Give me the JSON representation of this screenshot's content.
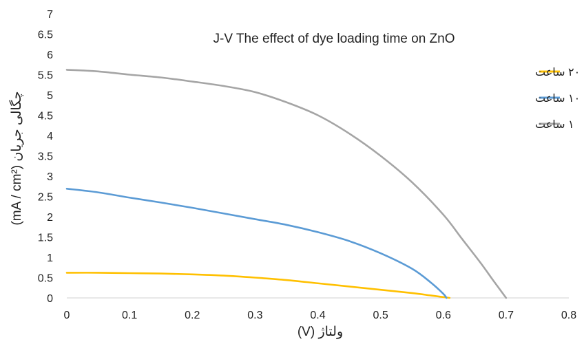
{
  "chart_data": {
    "type": "line",
    "title": "J-V The effect of dye loading time on ZnO",
    "xlabel": "ولتاژ (V)",
    "ylabel": "چگالی جریان (mA / cm²)",
    "xlim": [
      0,
      0.8
    ],
    "ylim": [
      0,
      7
    ],
    "xticks": [
      "0",
      "0.1",
      "0.2",
      "0.3",
      "0.4",
      "0.5",
      "0.6",
      "0.7",
      "0.8"
    ],
    "yticks": [
      "0",
      "0.5",
      "1",
      "1.5",
      "2",
      "2.5",
      "3",
      "3.5",
      "4",
      "4.5",
      "5",
      "5.5",
      "6",
      "6.5",
      "7"
    ],
    "grid": false,
    "legend_position": "top-right",
    "series": [
      {
        "name": "۲۰ ساعت",
        "color": "#FFC000",
        "points": [
          [
            0,
            0.62
          ],
          [
            0.05,
            0.62
          ],
          [
            0.1,
            0.61
          ],
          [
            0.15,
            0.6
          ],
          [
            0.2,
            0.58
          ],
          [
            0.25,
            0.55
          ],
          [
            0.3,
            0.5
          ],
          [
            0.35,
            0.44
          ],
          [
            0.4,
            0.36
          ],
          [
            0.45,
            0.28
          ],
          [
            0.5,
            0.2
          ],
          [
            0.55,
            0.12
          ],
          [
            0.58,
            0.06
          ],
          [
            0.6,
            0.02
          ],
          [
            0.61,
            0
          ]
        ]
      },
      {
        "name": "۱۰ ساعت",
        "color": "#5B9BD5",
        "points": [
          [
            0,
            2.69
          ],
          [
            0.05,
            2.6
          ],
          [
            0.1,
            2.47
          ],
          [
            0.15,
            2.35
          ],
          [
            0.2,
            2.22
          ],
          [
            0.25,
            2.08
          ],
          [
            0.3,
            1.94
          ],
          [
            0.35,
            1.8
          ],
          [
            0.4,
            1.62
          ],
          [
            0.45,
            1.4
          ],
          [
            0.5,
            1.1
          ],
          [
            0.55,
            0.72
          ],
          [
            0.58,
            0.38
          ],
          [
            0.6,
            0.1
          ],
          [
            0.605,
            0
          ]
        ]
      },
      {
        "name": "۱ ساعت",
        "color": "#A5A5A5",
        "points": [
          [
            0,
            5.62
          ],
          [
            0.05,
            5.58
          ],
          [
            0.1,
            5.5
          ],
          [
            0.15,
            5.43
          ],
          [
            0.2,
            5.33
          ],
          [
            0.25,
            5.22
          ],
          [
            0.3,
            5.07
          ],
          [
            0.35,
            4.82
          ],
          [
            0.4,
            4.5
          ],
          [
            0.45,
            4.05
          ],
          [
            0.5,
            3.5
          ],
          [
            0.55,
            2.85
          ],
          [
            0.6,
            2.05
          ],
          [
            0.63,
            1.45
          ],
          [
            0.66,
            0.85
          ],
          [
            0.68,
            0.42
          ],
          [
            0.7,
            0
          ]
        ]
      }
    ]
  }
}
